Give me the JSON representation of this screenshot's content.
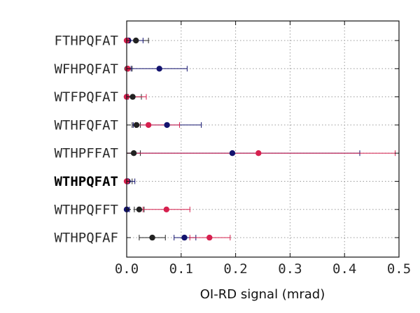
{
  "chart_data": {
    "type": "scatter",
    "orientation": "horizontal",
    "xlabel": "OI-RD signal (mrad)",
    "xlim": [
      0.0,
      0.5
    ],
    "xticks": [
      0.0,
      0.1,
      0.2,
      0.3,
      0.4,
      0.5
    ],
    "xtick_labels": [
      "0.0",
      "0.1",
      "0.2",
      "0.3",
      "0.4",
      "0.5"
    ],
    "grid": true,
    "legend": "none",
    "categories": [
      "FTHPQFAT",
      "WFHPQFAT",
      "WTFPQFAT",
      "WTHFQFAT",
      "WTHPFFAT",
      "WTHPQFAT",
      "WTHPQFFT",
      "WTHPQFAF"
    ],
    "highlight_category": "WTHPQFAT",
    "series": [
      {
        "color": "#222222",
        "values": [
          0.017,
          0.001,
          0.011,
          0.018,
          0.013,
          0.001,
          0.023,
          0.047
        ],
        "error_low": [
          0.006,
          0.003,
          0.0,
          0.01,
          0.0,
          0.0,
          0.014,
          0.023
        ],
        "error_high": [
          0.04,
          0.01,
          0.027,
          0.025,
          0.025,
          0.01,
          0.032,
          0.071
        ]
      },
      {
        "color": "#13136e",
        "values": [
          0.003,
          0.06,
          0.0,
          0.074,
          0.194,
          0.002,
          0.0,
          0.106
        ],
        "error_low": [
          0.0,
          0.008,
          0.0,
          0.012,
          0.0,
          0.0,
          0.0,
          0.087
        ],
        "error_high": [
          0.03,
          0.111,
          0.003,
          0.137,
          0.428,
          0.015,
          0.005,
          0.127
        ]
      },
      {
        "color": "#d6204e",
        "values": [
          0.0,
          0.002,
          0.0,
          0.04,
          0.242,
          0.0,
          0.073,
          0.152
        ],
        "error_low": [
          0.0,
          0.0,
          0.0,
          0.016,
          0.0,
          0.0,
          0.03,
          0.116
        ],
        "error_high": [
          0.006,
          0.004,
          0.036,
          0.097,
          0.493,
          0.0,
          0.116,
          0.19
        ]
      }
    ]
  }
}
